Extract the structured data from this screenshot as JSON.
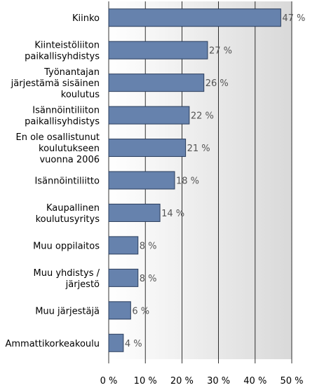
{
  "chart_data": {
    "type": "bar",
    "orientation": "horizontal",
    "categories": [
      "Kiinko",
      "Kiinteistöliiton paikallisyhdistys",
      "Työnantajan järjestämä sisäinen koulutus",
      "Isännöintiliiton paikallisyhdistys",
      "En ole osallistunut koulutukseen vuonna 2006",
      "Isännöintiliitto",
      "Kaupallinen koulutusyritys",
      "Muu oppilaitos",
      "Muu yhdistys / järjestö",
      "Muu järjestäjä",
      "Ammattikorkeakoulu"
    ],
    "category_lines": [
      [
        "Kiinko"
      ],
      [
        "Kiinteistöliiton",
        "paikallisyhdistys"
      ],
      [
        "Työnantajan",
        "järjestämä sisäinen",
        "koulutus"
      ],
      [
        "Isännöintiliiton",
        "paikallisyhdistys"
      ],
      [
        "En ole osallistunut",
        "koulutukseen",
        "vuonna 2006"
      ],
      [
        "Isännöintiliitto"
      ],
      [
        "Kaupallinen",
        "koulutusyritys"
      ],
      [
        "Muu oppilaitos"
      ],
      [
        "Muu yhdistys /",
        "järjestö"
      ],
      [
        "Muu järjestäjä"
      ],
      [
        "Ammattikorkeakoulu"
      ]
    ],
    "values": [
      47,
      27,
      26,
      22,
      21,
      18,
      14,
      8,
      8,
      6,
      4
    ],
    "value_labels": [
      "47 %",
      "27 %",
      "26 %",
      "22 %",
      "21 %",
      "18 %",
      "14 %",
      "8 %",
      "8 %",
      "6 %",
      "4 %"
    ],
    "xlim": [
      0,
      50
    ],
    "xticks": [
      0,
      10,
      20,
      30,
      40,
      50
    ],
    "xtick_labels": [
      "0 %",
      "10 %",
      "20 %",
      "30 %",
      "40 %",
      "50 %"
    ],
    "grid": true,
    "legend": "none",
    "colors": {
      "bar_fill": "#6682ad",
      "bar_stroke": "#2a3d5c",
      "plot_background_start": "#ffffff",
      "plot_background_end": "#d9d9d9"
    }
  }
}
